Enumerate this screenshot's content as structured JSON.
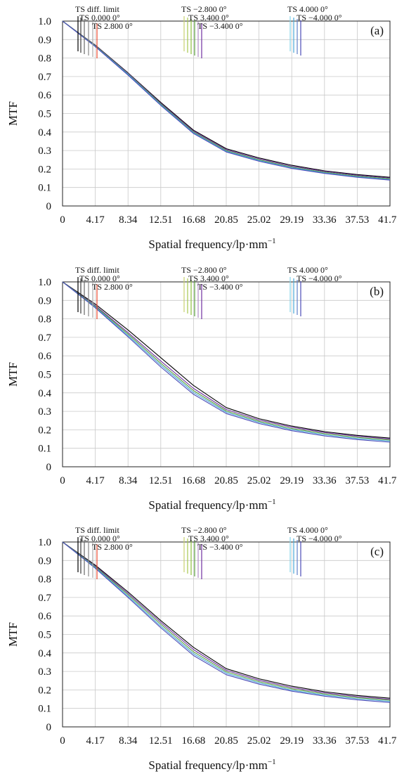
{
  "chart_data": [
    {
      "type": "line",
      "panel_label": "(a)",
      "xlabel": "Spatial frequency/lp·mm",
      "xlabel_sup": "−1",
      "ylabel": "MTF",
      "xlim": [
        0,
        41.7
      ],
      "ylim": [
        0,
        1.0
      ],
      "x_ticks": [
        "0",
        "4.17",
        "8.34",
        "12.51",
        "16.68",
        "20.85",
        "25.02",
        "29.19",
        "33.36",
        "37.53",
        "41.70"
      ],
      "y_ticks": [
        "0",
        "0.1",
        "0.2",
        "0.3",
        "0.4",
        "0.5",
        "0.6",
        "0.7",
        "0.8",
        "0.9",
        "1.0"
      ],
      "grid": true,
      "legend_position": "top",
      "legend": [
        "TS diff. limit",
        "TS 0.000 0°",
        "TS 2.800 0°",
        "TS −2.800 0°",
        "TS 3.400 0°",
        "TS −3.400 0°",
        "TS 4.000 0°",
        "TS −4.000 0°"
      ],
      "colors": [
        "#000000",
        "#3a3a3a",
        "#666666",
        "#999999",
        "#e8462c",
        "#c8d070",
        "#8cbf3c",
        "#5a9e3c",
        "#b08cc8",
        "#7030a0",
        "#86d4ea",
        "#4aa8d8",
        "#6080c8",
        "#4b4bb8"
      ],
      "series": [
        {
          "x": [
            0,
            4.17,
            8.34,
            12.51,
            16.68,
            20.85,
            25.02,
            29.19,
            33.36,
            37.53,
            41.7
          ],
          "values": [
            1.0,
            0.87,
            0.72,
            0.56,
            0.41,
            0.31,
            0.26,
            0.22,
            0.19,
            0.17,
            0.155
          ]
        },
        {
          "x": [
            0,
            4.17,
            8.34,
            12.51,
            16.68,
            20.85,
            25.02,
            29.19,
            33.36,
            37.53,
            41.7
          ],
          "values": [
            1.0,
            0.868,
            0.718,
            0.556,
            0.405,
            0.305,
            0.255,
            0.215,
            0.187,
            0.166,
            0.151
          ]
        },
        {
          "x": [
            0,
            4.17,
            8.34,
            12.51,
            16.68,
            20.85,
            25.02,
            29.19,
            33.36,
            37.53,
            41.7
          ],
          "values": [
            1.0,
            0.866,
            0.715,
            0.552,
            0.4,
            0.3,
            0.25,
            0.21,
            0.183,
            0.162,
            0.147
          ]
        },
        {
          "x": [
            0,
            4.17,
            8.34,
            12.51,
            16.68,
            20.85,
            25.02,
            29.19,
            33.36,
            37.53,
            41.7
          ],
          "values": [
            1.0,
            0.864,
            0.712,
            0.548,
            0.396,
            0.296,
            0.246,
            0.207,
            0.179,
            0.158,
            0.143
          ]
        },
        {
          "x": [
            0,
            4.17,
            8.34,
            12.51,
            16.68,
            20.85,
            25.02,
            29.19,
            33.36,
            37.53,
            41.7
          ],
          "values": [
            1.0,
            0.862,
            0.708,
            0.544,
            0.392,
            0.292,
            0.242,
            0.203,
            0.176,
            0.155,
            0.14
          ]
        }
      ]
    },
    {
      "type": "line",
      "panel_label": "(b)",
      "xlabel": "Spatial frequency/lp·mm",
      "xlabel_sup": "−1",
      "ylabel": "MTF",
      "xlim": [
        0,
        41.7
      ],
      "ylim": [
        0,
        1.0
      ],
      "x_ticks": [
        "0",
        "4.17",
        "8.34",
        "12.51",
        "16.68",
        "20.85",
        "25.02",
        "29.19",
        "33.36",
        "37.53",
        "41.70"
      ],
      "y_ticks": [
        "0",
        "0.1",
        "0.2",
        "0.3",
        "0.4",
        "0.5",
        "0.6",
        "0.7",
        "0.8",
        "0.9",
        "1.0"
      ],
      "grid": true,
      "legend_position": "top",
      "legend": [
        "TS diff. limit",
        "TS 0.000 0°",
        "TS 2.800 0°",
        "TS −2.800 0°",
        "TS 3.400 0°",
        "TS −3.400 0°",
        "TS 4.000 0°",
        "TS −4.000 0°"
      ],
      "colors": [
        "#000000",
        "#3a3a3a",
        "#666666",
        "#999999",
        "#e8462c",
        "#c8d070",
        "#8cbf3c",
        "#5a9e3c",
        "#b08cc8",
        "#7030a0",
        "#86d4ea",
        "#4aa8d8",
        "#6080c8",
        "#4b4bb8"
      ],
      "series": [
        {
          "x": [
            0,
            4.17,
            8.34,
            12.51,
            16.68,
            20.85,
            25.02,
            29.19,
            33.36,
            37.53,
            41.7
          ],
          "values": [
            1.0,
            0.88,
            0.74,
            0.59,
            0.44,
            0.32,
            0.26,
            0.22,
            0.19,
            0.17,
            0.155
          ]
        },
        {
          "x": [
            0,
            4.17,
            8.34,
            12.51,
            16.68,
            20.85,
            25.02,
            29.19,
            33.36,
            37.53,
            41.7
          ],
          "values": [
            1.0,
            0.872,
            0.726,
            0.572,
            0.424,
            0.31,
            0.253,
            0.214,
            0.185,
            0.165,
            0.15
          ]
        },
        {
          "x": [
            0,
            4.17,
            8.34,
            12.51,
            16.68,
            20.85,
            25.02,
            29.19,
            33.36,
            37.53,
            41.7
          ],
          "values": [
            1.0,
            0.868,
            0.718,
            0.56,
            0.412,
            0.302,
            0.246,
            0.207,
            0.179,
            0.159,
            0.145
          ]
        },
        {
          "x": [
            0,
            4.17,
            8.34,
            12.51,
            16.68,
            20.85,
            25.02,
            29.19,
            33.36,
            37.53,
            41.7
          ],
          "values": [
            1.0,
            0.864,
            0.71,
            0.55,
            0.402,
            0.295,
            0.24,
            0.201,
            0.173,
            0.153,
            0.139
          ]
        },
        {
          "x": [
            0,
            4.17,
            8.34,
            12.51,
            16.68,
            20.85,
            25.02,
            29.19,
            33.36,
            37.53,
            41.7
          ],
          "values": [
            1.0,
            0.86,
            0.703,
            0.54,
            0.392,
            0.288,
            0.234,
            0.195,
            0.167,
            0.147,
            0.133
          ]
        }
      ]
    },
    {
      "type": "line",
      "panel_label": "(c)",
      "xlabel": "Spatial frequency/lp·mm",
      "xlabel_sup": "−1",
      "ylabel": "MTF",
      "xlim": [
        0,
        41.7
      ],
      "ylim": [
        0,
        1.0
      ],
      "x_ticks": [
        "0",
        "4.17",
        "8.34",
        "12.51",
        "16.68",
        "20.85",
        "25.02",
        "29.19",
        "33.36",
        "37.53",
        "41.70"
      ],
      "y_ticks": [
        "0",
        "0.1",
        "0.2",
        "0.3",
        "0.4",
        "0.5",
        "0.6",
        "0.7",
        "0.8",
        "0.9",
        "1.0"
      ],
      "grid": true,
      "legend_position": "top",
      "legend": [
        "TS diff. limit",
        "TS 0.000 0°",
        "TS 2.800 0°",
        "TS −2.800 0°",
        "TS 3.400 0°",
        "TS −3.400 0°",
        "TS 4.000 0°",
        "TS −4.000 0°"
      ],
      "colors": [
        "#000000",
        "#3a3a3a",
        "#666666",
        "#999999",
        "#e8462c",
        "#c8d070",
        "#8cbf3c",
        "#5a9e3c",
        "#b08cc8",
        "#7030a0",
        "#86d4ea",
        "#4aa8d8",
        "#6080c8",
        "#4b4bb8"
      ],
      "series": [
        {
          "x": [
            0,
            4.17,
            8.34,
            12.51,
            16.68,
            20.85,
            25.02,
            29.19,
            33.36,
            37.53,
            41.7
          ],
          "values": [
            1.0,
            0.875,
            0.73,
            0.575,
            0.43,
            0.315,
            0.26,
            0.22,
            0.19,
            0.17,
            0.155
          ]
        },
        {
          "x": [
            0,
            4.17,
            8.34,
            12.51,
            16.68,
            20.85,
            25.02,
            29.19,
            33.36,
            37.53,
            41.7
          ],
          "values": [
            1.0,
            0.87,
            0.722,
            0.565,
            0.418,
            0.306,
            0.252,
            0.213,
            0.184,
            0.164,
            0.149
          ]
        },
        {
          "x": [
            0,
            4.17,
            8.34,
            12.51,
            16.68,
            20.85,
            25.02,
            29.19,
            33.36,
            37.53,
            41.7
          ],
          "values": [
            1.0,
            0.866,
            0.715,
            0.555,
            0.406,
            0.298,
            0.245,
            0.206,
            0.178,
            0.158,
            0.144
          ]
        },
        {
          "x": [
            0,
            4.17,
            8.34,
            12.51,
            16.68,
            20.85,
            25.02,
            29.19,
            33.36,
            37.53,
            41.7
          ],
          "values": [
            1.0,
            0.862,
            0.707,
            0.545,
            0.396,
            0.29,
            0.238,
            0.199,
            0.172,
            0.152,
            0.138
          ]
        },
        {
          "x": [
            0,
            4.17,
            8.34,
            12.51,
            16.68,
            20.85,
            25.02,
            29.19,
            33.36,
            37.53,
            41.7
          ],
          "values": [
            1.0,
            0.858,
            0.7,
            0.536,
            0.386,
            0.282,
            0.231,
            0.193,
            0.166,
            0.146,
            0.132
          ]
        }
      ]
    }
  ]
}
